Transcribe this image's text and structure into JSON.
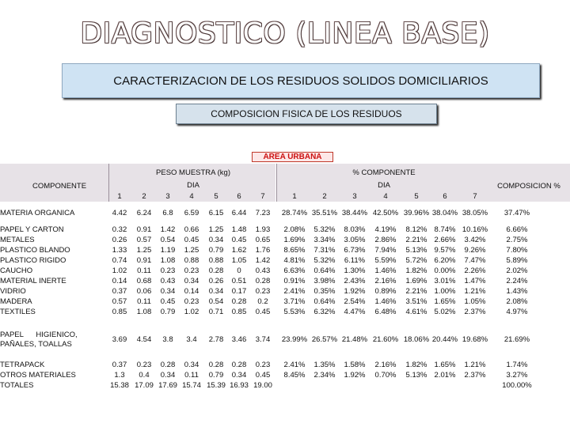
{
  "title": "DIAGNOSTICO (LINEA BASE)",
  "banner": "CARACTERIZACION DE LOS RESIDUOS SOLIDOS DOMICILIARIOS",
  "subbanner": "COMPOSICION FISICA DE LOS RESIDUOS",
  "area_label": "AREA URBANA",
  "table": {
    "col_componente": "COMPONENTE",
    "peso_header": "PESO MUESTRA (kg)",
    "pct_header": "% COMPONENTE",
    "dia": "DIA",
    "composicion_header": "COMPOSICION %",
    "days": [
      "1",
      "2",
      "3",
      "4",
      "5",
      "6",
      "7"
    ],
    "rows": [
      {
        "name": "MATERIA ORGANICA",
        "peso": [
          "4.42",
          "6.24",
          "6.8",
          "6.59",
          "6.15",
          "6.44",
          "7.23"
        ],
        "pct": [
          "28.74%",
          "35.51%",
          "38.44%",
          "42.50%",
          "39.96%",
          "38.04%",
          "38.05%"
        ],
        "comp": "37.47%"
      },
      {
        "name": "PAPEL Y CARTON",
        "peso": [
          "0.32",
          "0.91",
          "1.42",
          "0.66",
          "1.25",
          "1.48",
          "1.93"
        ],
        "pct": [
          "2.08%",
          "5.32%",
          "8.03%",
          "4.19%",
          "8.12%",
          "8.74%",
          "10.16%"
        ],
        "comp": "6.66%"
      },
      {
        "name": "METALES",
        "peso": [
          "0.26",
          "0.57",
          "0.54",
          "0.45",
          "0.34",
          "0.45",
          "0.65"
        ],
        "pct": [
          "1.69%",
          "3.34%",
          "3.05%",
          "2.86%",
          "2.21%",
          "2.66%",
          "3.42%"
        ],
        "comp": "2.75%"
      },
      {
        "name": "PLASTICO BLANDO",
        "peso": [
          "1.33",
          "1.25",
          "1.19",
          "1.25",
          "0.79",
          "1.62",
          "1.76"
        ],
        "pct": [
          "8.65%",
          "7.31%",
          "6.73%",
          "7.94%",
          "5.13%",
          "9.57%",
          "9.26%"
        ],
        "comp": "7.80%"
      },
      {
        "name": "PLASTICO RIGIDO",
        "peso": [
          "0.74",
          "0.91",
          "1.08",
          "0.88",
          "0.88",
          "1.05",
          "1.42"
        ],
        "pct": [
          "4.81%",
          "5.32%",
          "6.11%",
          "5.59%",
          "5.72%",
          "6.20%",
          "7.47%"
        ],
        "comp": "5.89%"
      },
      {
        "name": "CAUCHO",
        "peso": [
          "1.02",
          "0.11",
          "0.23",
          "0.23",
          "0.28",
          "0",
          "0.43"
        ],
        "pct": [
          "6.63%",
          "0.64%",
          "1.30%",
          "1.46%",
          "1.82%",
          "0.00%",
          "2.26%"
        ],
        "comp": "2.02%"
      },
      {
        "name": "MATERIAL INERTE",
        "peso": [
          "0.14",
          "0.68",
          "0.43",
          "0.34",
          "0.26",
          "0.51",
          "0.28"
        ],
        "pct": [
          "0.91%",
          "3.98%",
          "2.43%",
          "2.16%",
          "1.69%",
          "3.01%",
          "1.47%"
        ],
        "comp": "2.24%"
      },
      {
        "name": "VIDRIO",
        "peso": [
          "0.37",
          "0.06",
          "0.34",
          "0.14",
          "0.34",
          "0.17",
          "0.23"
        ],
        "pct": [
          "2.41%",
          "0.35%",
          "1.92%",
          "0.89%",
          "2.21%",
          "1.00%",
          "1.21%"
        ],
        "comp": "1.43%"
      },
      {
        "name": "MADERA",
        "peso": [
          "0.57",
          "0.11",
          "0.45",
          "0.23",
          "0.54",
          "0.28",
          "0.2"
        ],
        "pct": [
          "3.71%",
          "0.64%",
          "2.54%",
          "1.46%",
          "3.51%",
          "1.65%",
          "1.05%"
        ],
        "comp": "2.08%"
      },
      {
        "name": "TEXTILES",
        "peso": [
          "0.85",
          "1.08",
          "0.79",
          "1.02",
          "0.71",
          "0.85",
          "0.45"
        ],
        "pct": [
          "5.53%",
          "6.32%",
          "4.47%",
          "6.48%",
          "4.61%",
          "5.02%",
          "2.37%"
        ],
        "comp": "4.97%"
      },
      {
        "name": "PAPEL HIGIENICO, PAÑALES, TOALLAS",
        "name_l1": "PAPEL      HIGIENICO,",
        "name_l2": "PAÑALES, TOALLAS",
        "peso": [
          "3.69",
          "4.54",
          "3.8",
          "3.4",
          "2.78",
          "3.46",
          "3.74"
        ],
        "pct": [
          "23.99%",
          "26.57%",
          "21.48%",
          "21.60%",
          "18.06%",
          "20.44%",
          "19.68%"
        ],
        "comp": "21.69%"
      },
      {
        "name": "TETRAPACK",
        "peso": [
          "0.37",
          "0.23",
          "0.28",
          "0.34",
          "0.28",
          "0.28",
          "0.23"
        ],
        "pct": [
          "2.41%",
          "1.35%",
          "1.58%",
          "2.16%",
          "1.82%",
          "1.65%",
          "1.21%"
        ],
        "comp": "1.74%"
      },
      {
        "name": "OTROS MATERIALES",
        "peso": [
          "1.3",
          "0.4",
          "0.34",
          "0.11",
          "0.79",
          "0.34",
          "0.45"
        ],
        "pct": [
          "8.45%",
          "2.34%",
          "1.92%",
          "0.70%",
          "5.13%",
          "2.01%",
          "2.37%"
        ],
        "comp": "3.27%"
      },
      {
        "name": "TOTALES",
        "peso": [
          "15.38",
          "17.09",
          "17.69",
          "15.74",
          "15.39",
          "16.93",
          "19.00"
        ],
        "pct": [
          "",
          "",
          "",
          "",
          "",
          "",
          ""
        ],
        "comp": "100.00%"
      }
    ]
  }
}
